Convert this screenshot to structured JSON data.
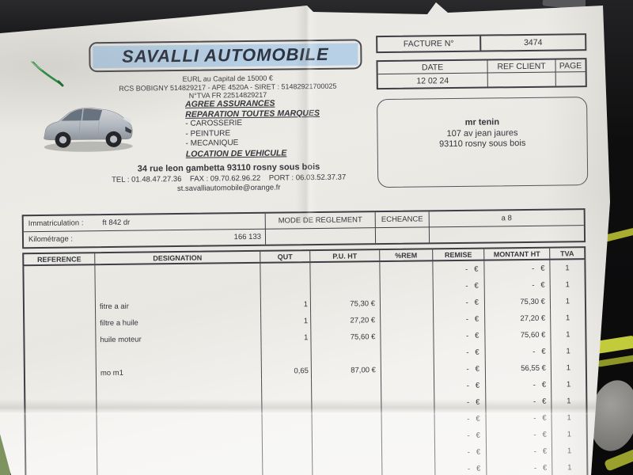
{
  "header": {
    "company_name": "SAVALLI AUTOMOBILE",
    "legal_line1": "EURL au Capital de 15000 €",
    "legal_line2": "RCS BOBIGNY 514829217 - APE 4520A - SIRET : 51482921700025",
    "legal_line3": "N°TVA FR 22514829217",
    "services": {
      "line1": "AGREE ASSURANCES",
      "line2": "REPARATION TOUTES MARQUES",
      "item1": "- CAROSSERIE",
      "item2": "- PEINTURE",
      "item3": "- MECANIQUE",
      "line3": "LOCATION DE VEHICULE"
    },
    "address": "34 rue leon gambetta  93110 rosny sous bois",
    "contact": "TEL : 01.48.47.27.36    FAX : 09.70.62.96.22    PORT : 06.03.52.37.37",
    "email": "st.savalliautomobile@orange.fr"
  },
  "invoice": {
    "facture_label": "FACTURE N°",
    "facture_number": "3474",
    "date_label": "DATE",
    "ref_client_label": "REF CLIENT",
    "page_label": "PAGE",
    "date_value": "12 02 24",
    "ref_client_value": "",
    "page_value": ""
  },
  "client": {
    "name": "mr tenin",
    "address_line1": "107 av jean jaures",
    "address_line2": "93110 rosny sous bois"
  },
  "vehicle": {
    "immatriculation_label": "Immatriculation :",
    "immatriculation_value": "ft 842 dr",
    "kilometrage_label": "Kilométrage :",
    "kilometrage_value": "166 133",
    "mode_reglement_label": "MODE DE REGLEMENT",
    "echeance_label": "ECHEANCE",
    "echeance_value": "a 8"
  },
  "items_table": {
    "headers": [
      "REFERENCE",
      "DESIGNATION",
      "QUT",
      "P.U. HT",
      "%REM",
      "REMISE",
      "MONTANT HT",
      "TVA"
    ],
    "rows": [
      {
        "reference": "",
        "designation": "",
        "qut": "",
        "pu_ht": "",
        "rem": "",
        "remise": "-   €",
        "montant_ht": "-   €",
        "tva": "1"
      },
      {
        "reference": "",
        "designation": "",
        "qut": "",
        "pu_ht": "",
        "rem": "",
        "remise": "-   €",
        "montant_ht": "-   €",
        "tva": "1"
      },
      {
        "reference": "",
        "designation": "fitre a air",
        "qut": "1",
        "pu_ht": "75,30 €",
        "rem": "",
        "remise": "-   €",
        "montant_ht": "75,30 €",
        "tva": "1"
      },
      {
        "reference": "",
        "designation": "filtre a huile",
        "qut": "1",
        "pu_ht": "27,20 €",
        "rem": "",
        "remise": "-   €",
        "montant_ht": "27,20 €",
        "tva": "1"
      },
      {
        "reference": "",
        "designation": "huile moteur",
        "qut": "1",
        "pu_ht": "75,60 €",
        "rem": "",
        "remise": "-   €",
        "montant_ht": "75,60 €",
        "tva": "1"
      },
      {
        "reference": "",
        "designation": "",
        "qut": "",
        "pu_ht": "",
        "rem": "",
        "remise": "-   €",
        "montant_ht": "-   €",
        "tva": "1"
      },
      {
        "reference": "",
        "designation": "mo m1",
        "qut": "0,65",
        "pu_ht": "87,00 €",
        "rem": "",
        "remise": "-   €",
        "montant_ht": "56,55 €",
        "tva": "1"
      },
      {
        "reference": "",
        "designation": "",
        "qut": "",
        "pu_ht": "",
        "rem": "",
        "remise": "-   €",
        "montant_ht": "-   €",
        "tva": "1"
      },
      {
        "reference": "",
        "designation": "",
        "qut": "",
        "pu_ht": "",
        "rem": "",
        "remise": "-   €",
        "montant_ht": "-   €",
        "tva": "1"
      },
      {
        "reference": "",
        "designation": "",
        "qut": "",
        "pu_ht": "",
        "rem": "",
        "remise": "-   €",
        "montant_ht": "-   €",
        "tva": "1"
      },
      {
        "reference": "",
        "designation": "",
        "qut": "",
        "pu_ht": "",
        "rem": "",
        "remise": "-   €",
        "montant_ht": "-   €",
        "tva": "1"
      },
      {
        "reference": "",
        "designation": "",
        "qut": "",
        "pu_ht": "",
        "rem": "",
        "remise": "-   €",
        "montant_ht": "-   €",
        "tva": "1"
      },
      {
        "reference": "",
        "designation": "",
        "qut": "",
        "pu_ht": "",
        "rem": "",
        "remise": "-   €",
        "montant_ht": "-   €",
        "tva": "1"
      }
    ]
  },
  "colors": {
    "banner_bg": "#b7d0e6",
    "paper": "#edebe6",
    "ink": "#35353c",
    "background": "#141416",
    "pen_mark": "#2f8a47",
    "accent_yellow": "#c2cb3a",
    "car_body": "#b9bec6"
  }
}
